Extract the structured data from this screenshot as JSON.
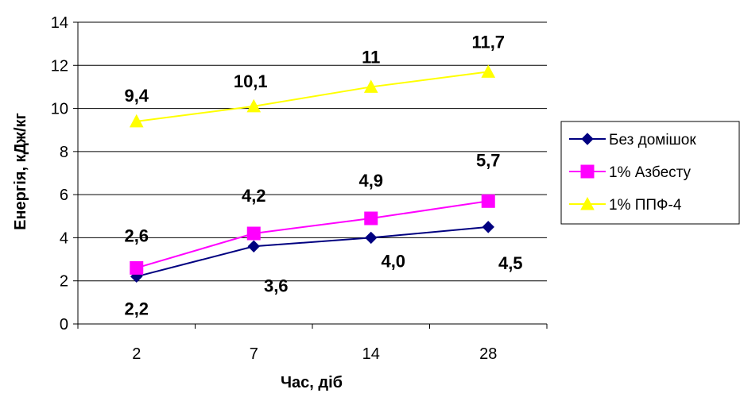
{
  "chart_data": {
    "type": "line",
    "title": "",
    "xlabel": "Час, діб",
    "ylabel": "Енергія, кДж/кг",
    "categories": [
      "2",
      "7",
      "14",
      "28"
    ],
    "ylim": [
      0,
      14
    ],
    "yticks": [
      "0",
      "2",
      "4",
      "6",
      "8",
      "10",
      "12",
      "14"
    ],
    "grid": true,
    "legend_position": "right",
    "series": [
      {
        "name": "Без домішок",
        "values": [
          2.2,
          3.6,
          4.0,
          4.5
        ],
        "labels": [
          "2,2",
          "3,6",
          "4,0",
          "4,5"
        ],
        "color": "#000080",
        "marker": "diamond"
      },
      {
        "name": "1% Азбесту",
        "values": [
          2.6,
          4.2,
          4.9,
          5.7
        ],
        "labels": [
          "2,6",
          "4,2",
          "4,9",
          "5,7"
        ],
        "color": "#ff00ff",
        "marker": "square"
      },
      {
        "name": "1% ППФ-4",
        "values": [
          9.4,
          10.1,
          11.0,
          11.7
        ],
        "labels": [
          "9,4",
          "10,1",
          "11",
          "11,7"
        ],
        "color": "#ffff00",
        "marker": "triangle"
      }
    ]
  }
}
